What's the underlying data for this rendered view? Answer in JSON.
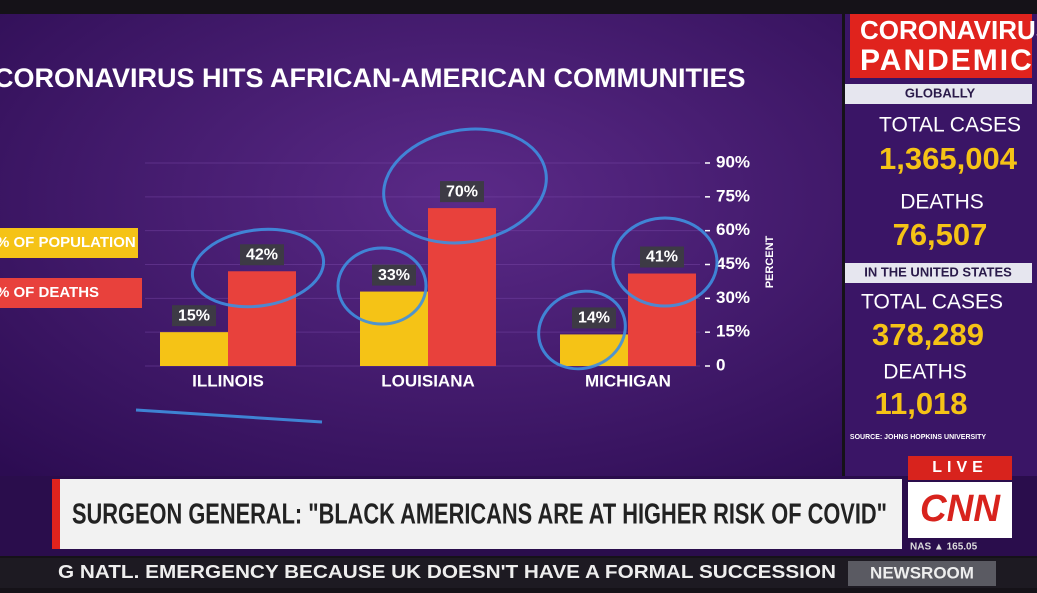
{
  "chart_data": {
    "type": "bar",
    "title": "CORONAVIRUS HITS AFRICAN-AMERICAN COMMUNITIES",
    "categories": [
      "ILLINOIS",
      "LOUISIANA",
      "MICHIGAN"
    ],
    "series": [
      {
        "name": "% OF POPULATION",
        "color": "#f5c316",
        "values": [
          15,
          33,
          14
        ],
        "value_labels": [
          "15%",
          "33%",
          "14%"
        ]
      },
      {
        "name": "% OF DEATHS",
        "color": "#e8413c",
        "values": [
          42,
          70,
          41
        ],
        "value_labels": [
          "42%",
          "70%",
          "41%"
        ]
      }
    ],
    "ylim": [
      0,
      90
    ],
    "yticks": [
      0,
      {
        "value": 15,
        "label": "15%"
      },
      {
        "value": 30,
        "label": "30%"
      },
      {
        "value": 45,
        "label": "45%"
      },
      {
        "value": 60,
        "label": "60%"
      },
      {
        "value": 75,
        "label": "75%"
      },
      {
        "value": 90,
        "label": "90%"
      }
    ],
    "y_label": "PERCENT",
    "grid": true
  },
  "sidebar": {
    "header": [
      "CORONAVIRUS",
      "PANDEMIC"
    ],
    "global_heading": "GLOBALLY",
    "global_cases_label": "TOTAL CASES",
    "global_cases": "1,365,004",
    "global_deaths_label": "DEATHS",
    "global_deaths": "76,507",
    "us_heading": "IN THE UNITED STATES",
    "us_cases_label": "TOTAL CASES",
    "us_cases": "378,289",
    "us_deaths_label": "DEATHS",
    "us_deaths": "11,018",
    "source": "SOURCE: JOHNS HOPKINS UNIVERSITY"
  },
  "banner": {
    "headline": "SURGEON GENERAL: \"BLACK AMERICANS ARE AT HIGHER RISK OF COVID\"",
    "live": "LIVE",
    "network": "CNN",
    "market": "NAS ▲ 165.05"
  },
  "ticker": {
    "text": "G NATL. EMERGENCY BECAUSE UK DOESN'T HAVE A FORMAL SUCCESSION",
    "section": "NEWSROOM"
  }
}
